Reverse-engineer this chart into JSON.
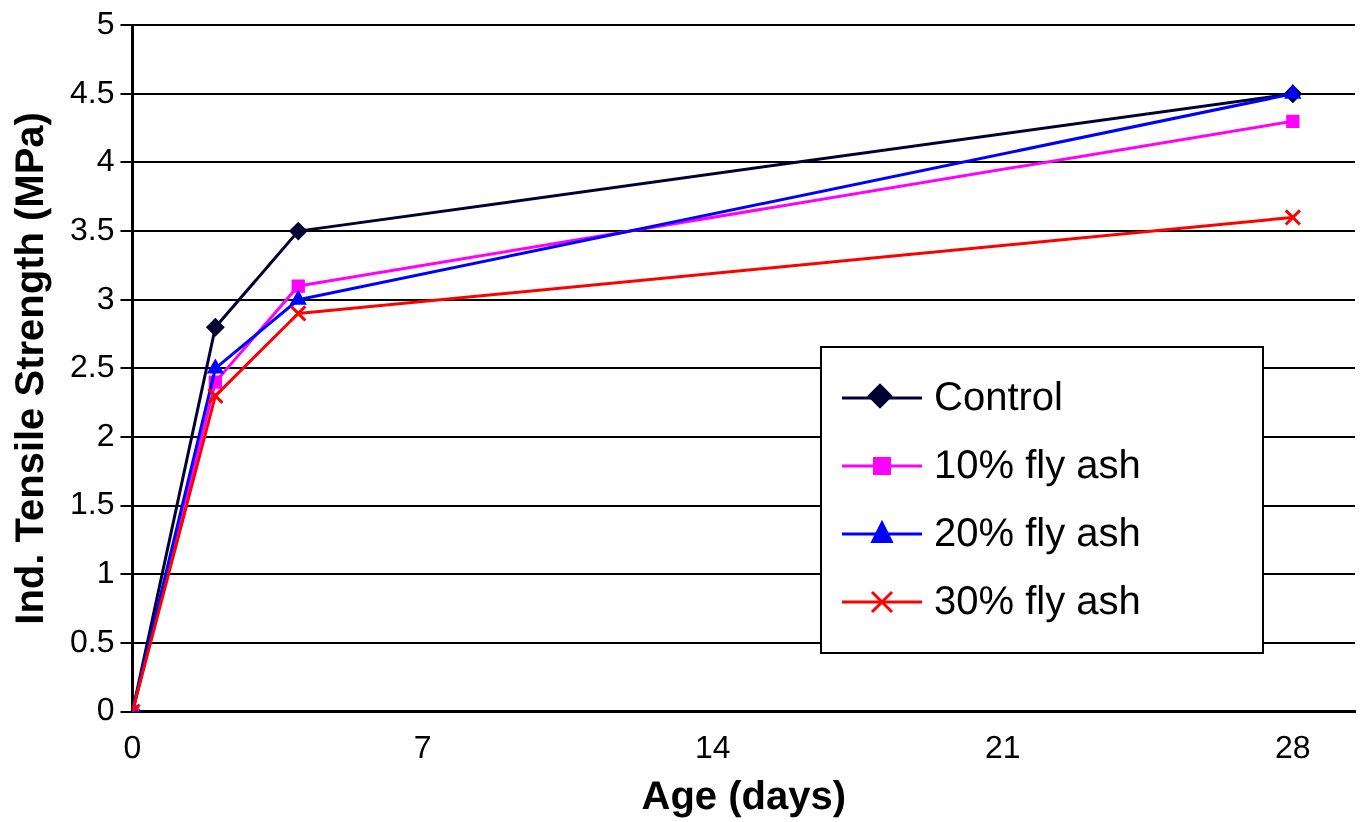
{
  "chart_data": {
    "type": "line",
    "xlabel": "Age (days)",
    "ylabel": "Ind. Tensile Strength (MPa)",
    "x": [
      0,
      2,
      4,
      28
    ],
    "series": [
      {
        "name": "Control",
        "color": "#000033",
        "marker": "diamond",
        "values": [
          0,
          2.8,
          3.5,
          4.5
        ]
      },
      {
        "name": "10% fly ash",
        "color": "#ff00ff",
        "marker": "square",
        "values": [
          0,
          2.4,
          3.1,
          4.3
        ]
      },
      {
        "name": "20% fly ash",
        "color": "#0000ff",
        "marker": "triangle",
        "values": [
          0,
          2.5,
          3.0,
          4.5
        ]
      },
      {
        "name": "30% fly ash",
        "color": "#ff0000",
        "marker": "cross",
        "values": [
          0,
          2.3,
          2.9,
          3.6
        ]
      }
    ],
    "xlim": [
      0,
      29.5
    ],
    "xticks": [
      0,
      7,
      14,
      21,
      28
    ],
    "ylim": [
      0,
      5
    ],
    "yticks": [
      0,
      0.5,
      1,
      1.5,
      2,
      2.5,
      3,
      3.5,
      4,
      4.5,
      5
    ],
    "grid": "y",
    "legend": "bottom right",
    "line_style": "solid"
  }
}
